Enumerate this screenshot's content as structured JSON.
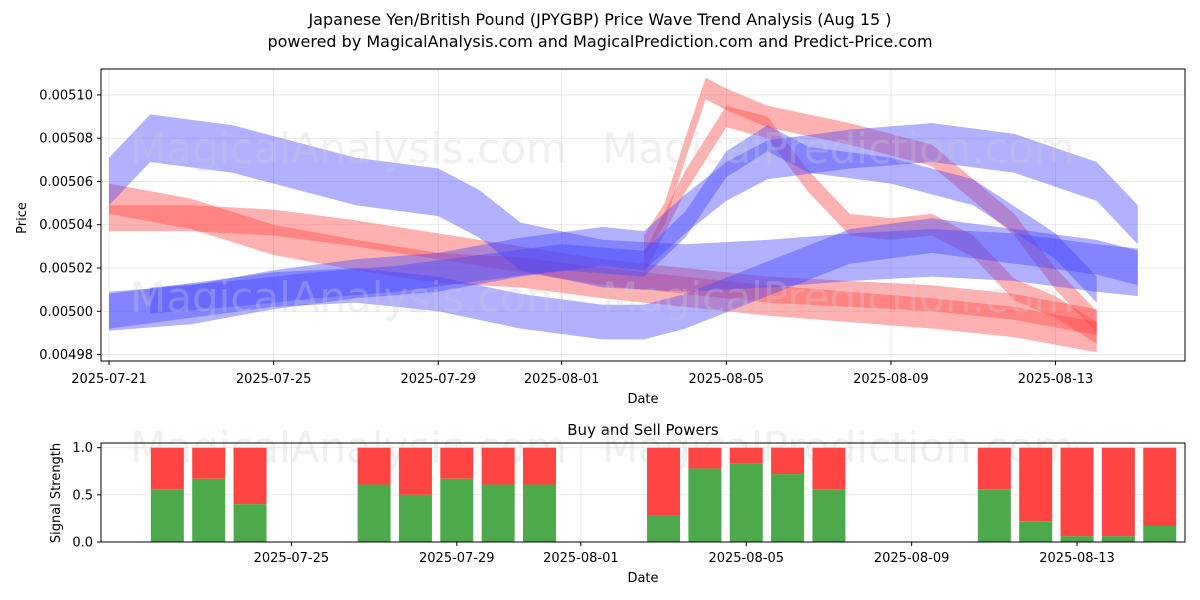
{
  "header": {
    "title_line1": "Japanese Yen/British Pound (JPYGBP) Price Wave Trend Analysis (Aug 15 )",
    "title_line2": "powered by MagicalAnalysis.com and MagicalPrediction.com and Predict-Price.com"
  },
  "watermarks": {
    "left": "MagicalAnalysis.com",
    "right": "MagicalPrediction.com"
  },
  "chart_data": [
    {
      "type": "area",
      "title": "",
      "xlabel": "Date",
      "ylabel": "Price",
      "x_ticks": [
        "2025-07-21",
        "2025-07-25",
        "2025-07-29",
        "2025-08-01",
        "2025-08-05",
        "2025-08-09",
        "2025-08-13"
      ],
      "y_ticks": [
        "0.00498",
        "0.00500",
        "0.00502",
        "0.00504",
        "0.00506",
        "0.00508",
        "0.00510"
      ],
      "ylim": [
        0.004977,
        0.005112
      ],
      "grid": true,
      "colors": {
        "red_band": "#ff4444",
        "blue_band": "#4444ff",
        "overlap": "#7a1fd4"
      },
      "series": [
        {
          "color": "red",
          "points": [
            [
              0,
              0.005052
            ],
            [
              2,
              0.005045
            ],
            [
              4,
              0.005033
            ],
            [
              6,
              0.005026
            ],
            [
              8,
              0.00502
            ],
            [
              10,
              0.005018
            ],
            [
              12,
              0.005013
            ],
            [
              14,
              0.005009
            ],
            [
              16,
              0.005005
            ],
            [
              18,
              0.005002
            ],
            [
              20,
              0.004999
            ],
            [
              22,
              0.004995
            ],
            [
              24,
              0.004988
            ]
          ],
          "width": 1.4e-05
        },
        {
          "color": "red",
          "points": [
            [
              0,
              0.005043
            ],
            [
              2,
              0.005043
            ],
            [
              4,
              0.005041
            ],
            [
              6,
              0.005036
            ],
            [
              8,
              0.00503
            ],
            [
              10,
              0.005024
            ],
            [
              12,
              0.005018
            ],
            [
              14,
              0.005014
            ],
            [
              16,
              0.00501
            ],
            [
              18,
              0.005008
            ],
            [
              20,
              0.005006
            ],
            [
              22,
              0.005002
            ],
            [
              24,
              0.004995
            ]
          ],
          "width": 1.2e-05
        },
        {
          "color": "red",
          "points": [
            [
              13,
              0.00503
            ],
            [
              13.5,
              0.005045
            ],
            [
              14,
              0.005075
            ],
            [
              14.5,
              0.005103
            ],
            [
              15,
              0.005098
            ],
            [
              16,
              0.00509
            ],
            [
              18,
              0.005082
            ],
            [
              20,
              0.005072
            ],
            [
              22,
              0.00504
            ],
            [
              23,
              0.005015
            ],
            [
              24,
              0.004995
            ]
          ],
          "width": 1e-05
        },
        {
          "color": "red",
          "points": [
            [
              13,
              0.005022
            ],
            [
              14,
              0.00506
            ],
            [
              15,
              0.00509
            ],
            [
              16,
              0.005085
            ],
            [
              17,
              0.00506
            ],
            [
              18,
              0.00504
            ],
            [
              19,
              0.005038
            ],
            [
              20,
              0.00504
            ],
            [
              21,
              0.00503
            ],
            [
              22,
              0.00501
            ],
            [
              23,
              0.005002
            ],
            [
              24,
              0.00499
            ]
          ],
          "width": 1e-05
        },
        {
          "color": "blue",
          "points": [
            [
              0,
              0.00506
            ],
            [
              1,
              0.00508
            ],
            [
              3,
              0.005075
            ],
            [
              4,
              0.00507
            ],
            [
              6,
              0.00506
            ],
            [
              8,
              0.005055
            ],
            [
              9,
              0.005045
            ],
            [
              10,
              0.00503
            ],
            [
              12,
              0.005022
            ],
            [
              14,
              0.00502
            ],
            [
              16,
              0.005022
            ],
            [
              18,
              0.005025
            ],
            [
              20,
              0.005027
            ],
            [
              22,
              0.005025
            ],
            [
              24,
              0.00502
            ],
            [
              25,
              0.005018
            ]
          ],
          "width": 2.2e-05
        },
        {
          "color": "blue",
          "points": [
            [
              0,
              0.005
            ],
            [
              2,
              0.005003
            ],
            [
              4,
              0.00501
            ],
            [
              6,
              0.005015
            ],
            [
              8,
              0.005018
            ],
            [
              10,
              0.005025
            ],
            [
              12,
              0.00503
            ],
            [
              13,
              0.005028
            ],
            [
              14,
              0.005045
            ],
            [
              15,
              0.00506
            ],
            [
              16,
              0.00507
            ],
            [
              18,
              0.005075
            ],
            [
              20,
              0.005078
            ],
            [
              22,
              0.005073
            ],
            [
              24,
              0.00506
            ],
            [
              25,
              0.00504
            ]
          ],
          "width": 1.8e-05
        },
        {
          "color": "blue",
          "points": [
            [
              0,
              0.005
            ],
            [
              2,
              0.005005
            ],
            [
              4,
              0.00501
            ],
            [
              6,
              0.005012
            ],
            [
              8,
              0.005008
            ],
            [
              10,
              0.005
            ],
            [
              12,
              0.004995
            ],
            [
              13,
              0.004995
            ],
            [
              14,
              0.005
            ],
            [
              16,
              0.005015
            ],
            [
              18,
              0.00503
            ],
            [
              20,
              0.005035
            ],
            [
              22,
              0.00503
            ],
            [
              24,
              0.005025
            ],
            [
              25,
              0.00502
            ]
          ],
          "width": 1.6e-05
        },
        {
          "color": "blue",
          "points": [
            [
              1,
              0.005005
            ],
            [
              3,
              0.005008
            ],
            [
              5,
              0.005012
            ],
            [
              7,
              0.005015
            ],
            [
              9,
              0.00502
            ],
            [
              11,
              0.005025
            ],
            [
              13,
              0.005022
            ],
            [
              14,
              0.00504
            ],
            [
              15,
              0.005068
            ],
            [
              16,
              0.00508
            ],
            [
              17,
              0.00507
            ],
            [
              19,
              0.005065
            ],
            [
              21,
              0.005055
            ],
            [
              23,
              0.00503
            ],
            [
              24,
              0.00501
            ]
          ],
          "width": 1.2e-05
        }
      ]
    },
    {
      "type": "bar",
      "title": "Buy and Sell Powers",
      "xlabel": "Date",
      "ylabel": "Signal Strength",
      "x_ticks": [
        "2025-07-25",
        "2025-07-29",
        "2025-08-01",
        "2025-08-05",
        "2025-08-09",
        "2025-08-13"
      ],
      "y_ticks": [
        "0.0",
        "0.5",
        "1.0"
      ],
      "ylim": [
        0,
        1.05
      ],
      "grid": true,
      "colors": {
        "buy": "#4caa4c",
        "sell": "#ff4444"
      },
      "bars": [
        {
          "day": 1,
          "buy": 0.56
        },
        {
          "day": 2,
          "buy": 0.67
        },
        {
          "day": 3,
          "buy": 0.4
        },
        {
          "day": 6,
          "buy": 0.61
        },
        {
          "day": 7,
          "buy": 0.5
        },
        {
          "day": 8,
          "buy": 0.67
        },
        {
          "day": 9,
          "buy": 0.61
        },
        {
          "day": 10,
          "buy": 0.61
        },
        {
          "day": 13,
          "buy": 0.28
        },
        {
          "day": 14,
          "buy": 0.78
        },
        {
          "day": 15,
          "buy": 0.83
        },
        {
          "day": 16,
          "buy": 0.72
        },
        {
          "day": 17,
          "buy": 0.56
        },
        {
          "day": 21,
          "buy": 0.56
        },
        {
          "day": 22,
          "buy": 0.22
        },
        {
          "day": 23,
          "buy": 0.06
        },
        {
          "day": 24,
          "buy": 0.06
        },
        {
          "day": 25,
          "buy": 0.17
        }
      ]
    }
  ]
}
